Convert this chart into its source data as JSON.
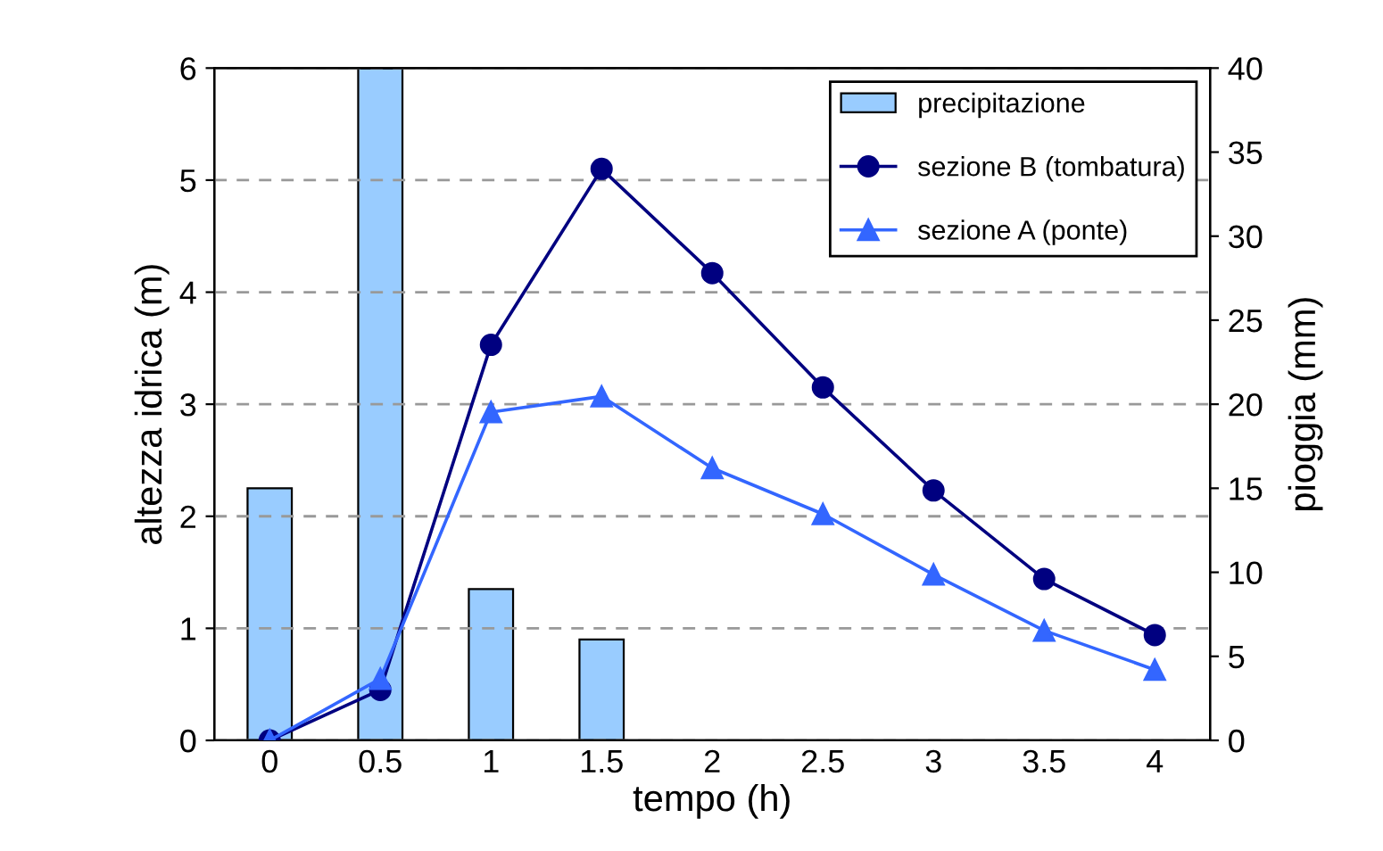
{
  "chart_data": {
    "type": "line",
    "xlabel": "tempo (h)",
    "ylabel": "altezza idrica (m)",
    "y2label": "pioggia (mm)",
    "categories": [
      "0",
      "0.5",
      "1",
      "1.5",
      "2",
      "2.5",
      "3",
      "3.5",
      "4"
    ],
    "series": [
      {
        "name": "precipitazione",
        "type": "bar",
        "axis": "y2",
        "color": "#99ccff",
        "values": [
          15,
          40,
          9,
          6,
          null,
          null,
          null,
          null,
          null
        ]
      },
      {
        "name": "sezione B (tombatura)",
        "color": "#000080",
        "marker": "circle",
        "values": [
          0,
          0.45,
          3.53,
          5.1,
          4.17,
          3.15,
          2.23,
          1.44,
          0.94
        ]
      },
      {
        "name": "sezione A (ponte)",
        "color": "#3366ff",
        "marker": "triangle",
        "values": [
          0,
          0.55,
          2.93,
          3.07,
          2.43,
          2.02,
          1.48,
          0.98,
          0.63
        ]
      }
    ],
    "ylim": [
      0,
      6
    ],
    "yticks": [
      0,
      1,
      2,
      3,
      4,
      5,
      6
    ],
    "y2lim": [
      0,
      40
    ],
    "y2ticks": [
      0,
      5,
      10,
      15,
      20,
      25,
      30,
      35,
      40
    ],
    "grid": "y",
    "legend": "top right",
    "line_style": "solid"
  }
}
